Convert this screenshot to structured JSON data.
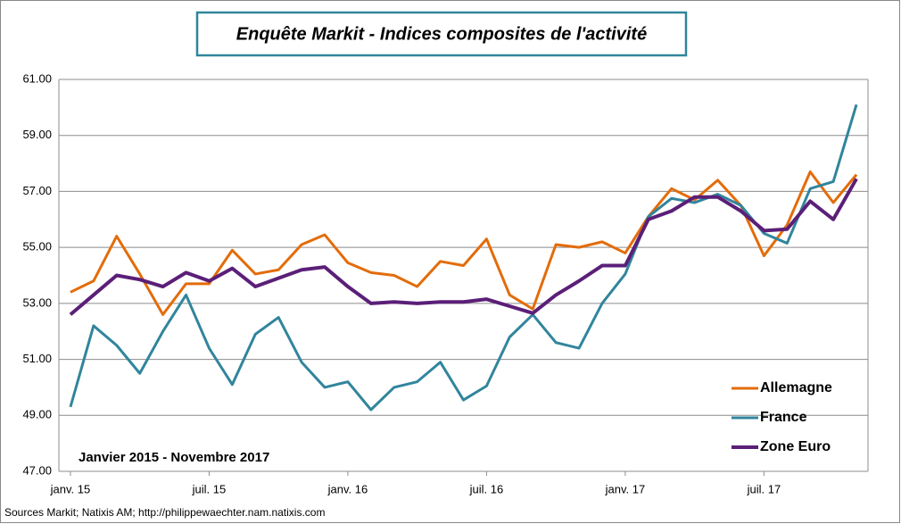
{
  "chart_data": {
    "type": "line",
    "title": "Enquête Markit - Indices composites de l'activité",
    "annotation": "Janvier 2015 - Novembre 2017",
    "source": "Sources Markit; Natixis AM; http://philippewaechter.nam.natixis.com",
    "categories": [
      "janv. 15",
      null,
      null,
      null,
      null,
      null,
      "juil. 15",
      null,
      null,
      null,
      null,
      null,
      "janv. 16",
      null,
      null,
      null,
      null,
      null,
      "juil. 16",
      null,
      null,
      null,
      null,
      null,
      "janv. 17",
      null,
      null,
      null,
      null,
      null,
      "juil. 17",
      null,
      null,
      null,
      null
    ],
    "series": [
      {
        "name": "Allemagne",
        "color": "#e36c0a",
        "values": [
          53.4,
          53.8,
          55.4,
          54.05,
          52.6,
          53.7,
          53.7,
          54.9,
          54.05,
          54.2,
          55.1,
          55.45,
          54.45,
          54.1,
          54.0,
          53.6,
          54.5,
          54.35,
          55.3,
          53.3,
          52.8,
          55.1,
          55.0,
          55.2,
          54.8,
          56.1,
          57.1,
          56.7,
          57.4,
          56.5,
          54.7,
          55.8,
          57.7,
          56.6,
          57.6
        ]
      },
      {
        "name": "France",
        "color": "#31859c",
        "values": [
          49.3,
          52.2,
          51.5,
          50.5,
          52.0,
          53.3,
          51.4,
          50.1,
          51.9,
          52.5,
          50.9,
          50.0,
          50.2,
          49.2,
          50.0,
          50.2,
          50.9,
          49.55,
          50.05,
          51.8,
          52.6,
          51.6,
          51.4,
          53.0,
          54.05,
          56.1,
          56.75,
          56.6,
          56.9,
          56.5,
          55.5,
          55.15,
          57.1,
          57.35,
          60.1
        ]
      },
      {
        "name": "Zone Euro",
        "color": "#5b1f78",
        "values": [
          52.6,
          53.3,
          54.0,
          53.85,
          53.6,
          54.1,
          53.8,
          54.25,
          53.6,
          53.9,
          54.2,
          54.3,
          53.6,
          53.0,
          53.05,
          53.0,
          53.05,
          53.05,
          53.15,
          52.9,
          52.65,
          53.3,
          53.8,
          54.35,
          54.35,
          56.0,
          56.3,
          56.8,
          56.8,
          56.3,
          55.6,
          55.65,
          56.65,
          56.0,
          57.45
        ]
      }
    ],
    "ylim": [
      47,
      61
    ],
    "yticks": [
      {
        "value": 47,
        "label": "47.00"
      },
      {
        "value": 49,
        "label": "49.00"
      },
      {
        "value": 51,
        "label": "51.00"
      },
      {
        "value": 53,
        "label": "53.00"
      },
      {
        "value": 55,
        "label": "55.00"
      },
      {
        "value": 57,
        "label": "57.00"
      },
      {
        "value": 59,
        "label": "59.00"
      },
      {
        "value": 61,
        "label": "61.00"
      }
    ],
    "grid": true,
    "legend": "bottom-right"
  }
}
